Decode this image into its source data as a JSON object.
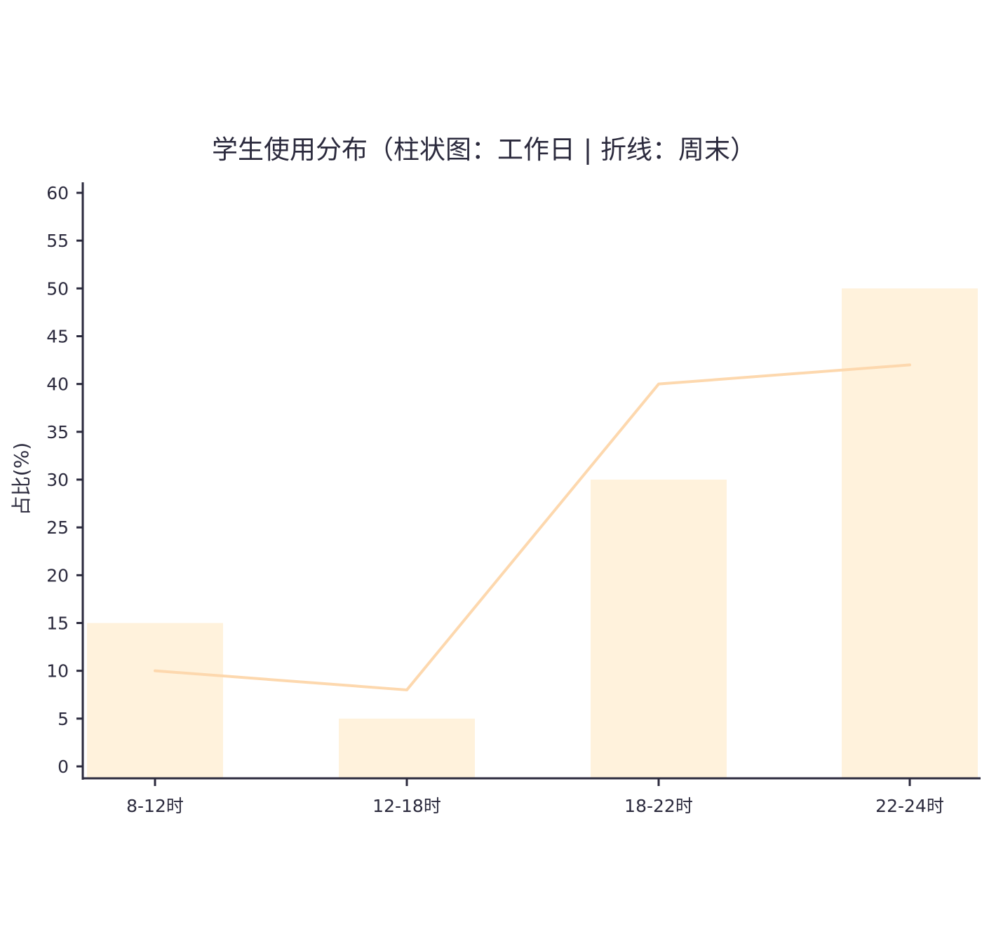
{
  "chart_data": {
    "type": "bar",
    "title": "学生使用分布（柱状图：工作日 | 折线：周末）",
    "xlabel": "",
    "ylabel": "占比(%)",
    "categories": [
      "8-12时",
      "12-18时",
      "18-22时",
      "22-24时"
    ],
    "ylim": [
      0,
      60
    ],
    "yticks": [
      0,
      5,
      10,
      15,
      20,
      25,
      30,
      35,
      40,
      45,
      50,
      55,
      60
    ],
    "grid": false,
    "legend": "none",
    "series": [
      {
        "type": "bar",
        "values": [
          15,
          5,
          30,
          50
        ],
        "color": "#fff2dc"
      },
      {
        "type": "line",
        "values": [
          10,
          8,
          40,
          42
        ],
        "color": "#fdd8ae"
      }
    ],
    "axis_color": "#2b2a3d"
  }
}
